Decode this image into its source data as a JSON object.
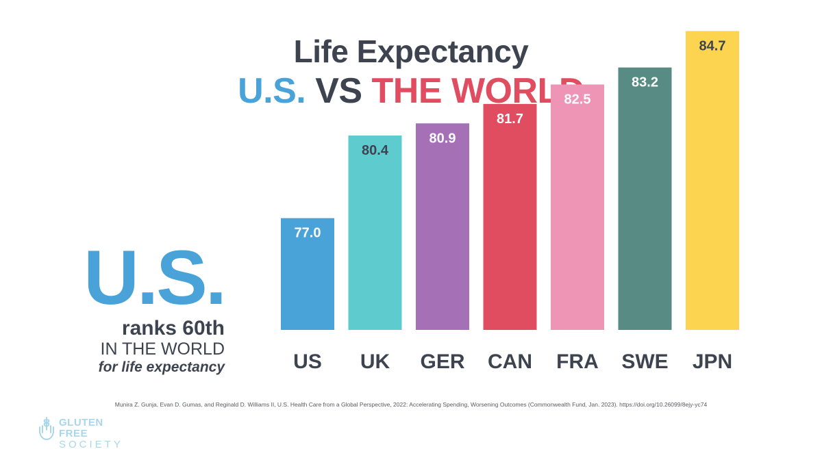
{
  "title": {
    "line1": "Life Expectancy",
    "us": "U.S.",
    "vs": "VS",
    "world": "THE WORLD"
  },
  "callout": {
    "big": "U.S.",
    "line1": "ranks 60th",
    "line2": "IN THE WORLD",
    "line3": "for life expectancy"
  },
  "citation": "Munira Z. Gunja, Evan D. Gumas, and Reginald D. Williams II, U.S. Health Care from a Global Perspective, 2022: Accelerating Spending, Worsening Outcomes (Commonwealth Fund, Jan. 2023). https://doi.org/10.26099/8ejy-yc74",
  "logo": {
    "line1": "GLUTEN FREE",
    "line2": "SOCIETY"
  },
  "colors": {
    "dark_text": "#3d4450",
    "us_blue": "#4aa3d8",
    "world_red": "#e04c60"
  },
  "chart_data": {
    "type": "bar",
    "categories": [
      "US",
      "UK",
      "GER",
      "CAN",
      "FRA",
      "SWE",
      "JPN"
    ],
    "values": [
      77.0,
      80.4,
      80.9,
      81.7,
      82.5,
      83.2,
      84.7
    ],
    "value_labels": [
      "77.0",
      "80.4",
      "80.9",
      "81.7",
      "82.5",
      "83.2",
      "84.7"
    ],
    "bar_colors": [
      "#4aa3d8",
      "#5ecbcf",
      "#a570b6",
      "#e04c60",
      "#ee95b5",
      "#578b84",
      "#fdd44f"
    ],
    "label_colors": [
      "#ffffff",
      "#3d4450",
      "#ffffff",
      "#ffffff",
      "#ffffff",
      "#ffffff",
      "#3d4450"
    ],
    "grid": false,
    "legend": "none"
  }
}
